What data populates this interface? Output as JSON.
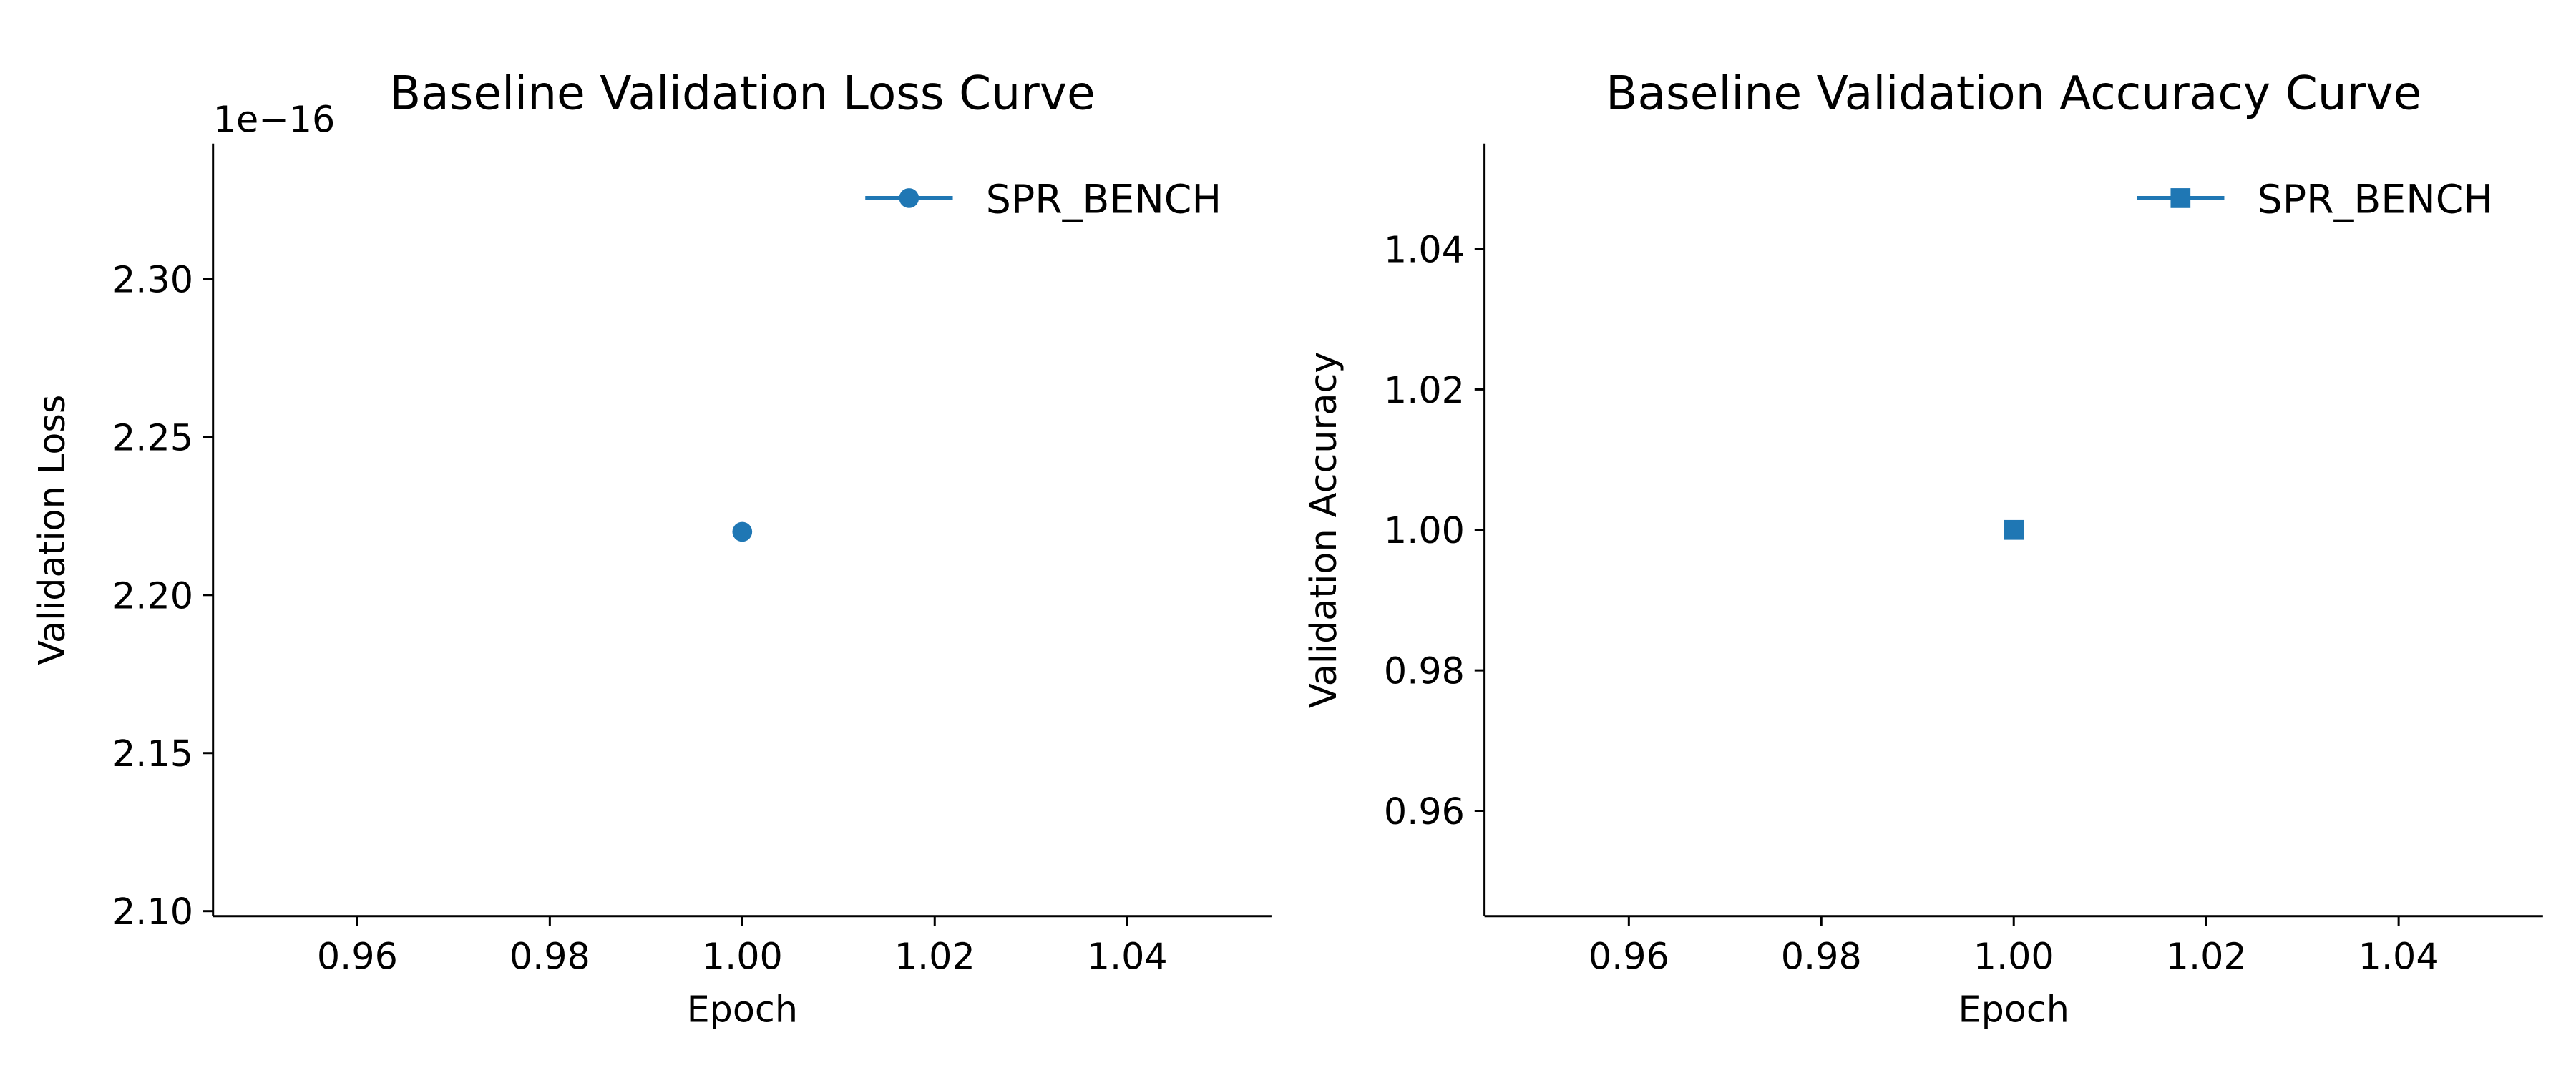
{
  "chart_data": [
    {
      "type": "line",
      "title": "Baseline Validation Loss Curve",
      "x_label": "Epoch",
      "y_label": "Validation Loss",
      "y_offset_text": "1e−16",
      "x": [
        1
      ],
      "series": [
        {
          "name": "SPR_BENCH",
          "color": "#1f77b4",
          "marker": "circle",
          "values": [
            2.22
          ]
        }
      ],
      "xlim": [
        0.945,
        1.055
      ],
      "xticks": [
        0.96,
        0.98,
        {
          "value": 1,
          "label": "1.00"
        },
        1.02,
        1.04
      ],
      "ylim": [
        2.0984,
        2.3428
      ],
      "yticks": [
        {
          "value": 2.1,
          "label": "2.10"
        },
        2.15,
        {
          "value": 2.2,
          "label": "2.20"
        },
        2.25,
        {
          "value": 2.3,
          "label": "2.30"
        }
      ],
      "legend": "upper right",
      "grid": false
    },
    {
      "type": "line",
      "title": "Baseline Validation Accuracy Curve",
      "x_label": "Epoch",
      "y_label": "Validation Accuracy",
      "x": [
        1
      ],
      "series": [
        {
          "name": "SPR_BENCH",
          "color": "#1f77b4",
          "marker": "square",
          "values": [
            1
          ]
        }
      ],
      "xlim": [
        0.945,
        1.055
      ],
      "xticks": [
        0.96,
        0.98,
        {
          "value": 1,
          "label": "1.00"
        },
        1.02,
        1.04
      ],
      "ylim": [
        0.945,
        1.055
      ],
      "yticks": [
        0.96,
        0.98,
        {
          "value": 1,
          "label": "1.00"
        },
        1.02,
        1.04
      ],
      "legend": "upper right",
      "grid": false
    }
  ]
}
